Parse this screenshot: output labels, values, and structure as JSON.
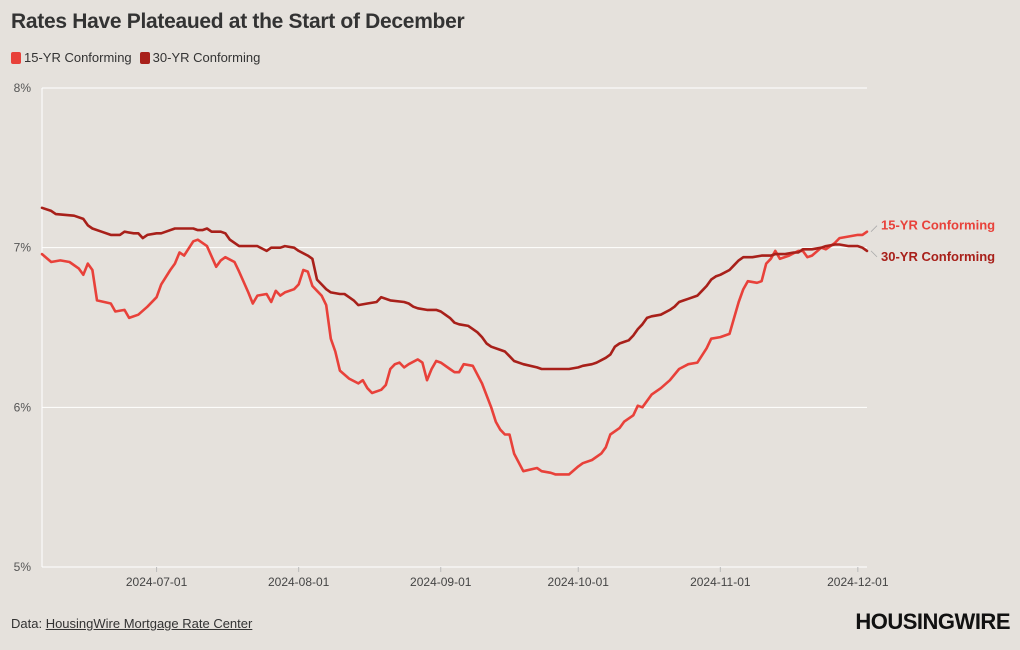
{
  "chart_data": {
    "type": "line",
    "title": "Rates Have Plateaued at the Start of December",
    "xlabel": "",
    "ylabel": "",
    "x_start": "2024-06-06",
    "x_end": "2024-12-03",
    "x_ticks": [
      "2024-07-01",
      "2024-08-01",
      "2024-09-01",
      "2024-10-01",
      "2024-11-01",
      "2024-12-01"
    ],
    "y_ticks": [
      "5%",
      "6%",
      "7%",
      "8%"
    ],
    "ylim": [
      5,
      8
    ],
    "grid": true,
    "legend_position": "top-left",
    "series": [
      {
        "name": "15-YR Conforming",
        "color": "#e8413a",
        "end_label": "15-YR Conforming",
        "points": [
          [
            "2024-06-06",
            6.96
          ],
          [
            "2024-06-08",
            6.91
          ],
          [
            "2024-06-10",
            6.92
          ],
          [
            "2024-06-12",
            6.91
          ],
          [
            "2024-06-14",
            6.87
          ],
          [
            "2024-06-15",
            6.83
          ],
          [
            "2024-06-16",
            6.9
          ],
          [
            "2024-06-17",
            6.86
          ],
          [
            "2024-06-18",
            6.67
          ],
          [
            "2024-06-21",
            6.65
          ],
          [
            "2024-06-22",
            6.6
          ],
          [
            "2024-06-24",
            6.61
          ],
          [
            "2024-06-25",
            6.56
          ],
          [
            "2024-06-27",
            6.58
          ],
          [
            "2024-06-29",
            6.63
          ],
          [
            "2024-07-01",
            6.69
          ],
          [
            "2024-07-02",
            6.77
          ],
          [
            "2024-07-04",
            6.86
          ],
          [
            "2024-07-05",
            6.9
          ],
          [
            "2024-07-06",
            6.97
          ],
          [
            "2024-07-07",
            6.95
          ],
          [
            "2024-07-09",
            7.04
          ],
          [
            "2024-07-10",
            7.05
          ],
          [
            "2024-07-12",
            7.01
          ],
          [
            "2024-07-14",
            6.88
          ],
          [
            "2024-07-15",
            6.92
          ],
          [
            "2024-07-16",
            6.94
          ],
          [
            "2024-07-18",
            6.91
          ],
          [
            "2024-07-19",
            6.85
          ],
          [
            "2024-07-21",
            6.72
          ],
          [
            "2024-07-22",
            6.65
          ],
          [
            "2024-07-23",
            6.7
          ],
          [
            "2024-07-25",
            6.71
          ],
          [
            "2024-07-26",
            6.66
          ],
          [
            "2024-07-27",
            6.73
          ],
          [
            "2024-07-28",
            6.7
          ],
          [
            "2024-07-29",
            6.72
          ],
          [
            "2024-07-31",
            6.74
          ],
          [
            "2024-08-01",
            6.77
          ],
          [
            "2024-08-02",
            6.86
          ],
          [
            "2024-08-03",
            6.85
          ],
          [
            "2024-08-04",
            6.76
          ],
          [
            "2024-08-05",
            6.73
          ],
          [
            "2024-08-06",
            6.7
          ],
          [
            "2024-08-07",
            6.64
          ],
          [
            "2024-08-08",
            6.43
          ],
          [
            "2024-08-09",
            6.35
          ],
          [
            "2024-08-10",
            6.23
          ],
          [
            "2024-08-12",
            6.18
          ],
          [
            "2024-08-14",
            6.15
          ],
          [
            "2024-08-15",
            6.17
          ],
          [
            "2024-08-16",
            6.12
          ],
          [
            "2024-08-17",
            6.09
          ],
          [
            "2024-08-19",
            6.11
          ],
          [
            "2024-08-20",
            6.14
          ],
          [
            "2024-08-21",
            6.24
          ],
          [
            "2024-08-22",
            6.27
          ],
          [
            "2024-08-23",
            6.28
          ],
          [
            "2024-08-24",
            6.25
          ],
          [
            "2024-08-25",
            6.27
          ],
          [
            "2024-08-27",
            6.3
          ],
          [
            "2024-08-28",
            6.28
          ],
          [
            "2024-08-29",
            6.17
          ],
          [
            "2024-08-30",
            6.24
          ],
          [
            "2024-08-31",
            6.29
          ],
          [
            "2024-09-01",
            6.28
          ],
          [
            "2024-09-03",
            6.24
          ],
          [
            "2024-09-04",
            6.22
          ],
          [
            "2024-09-05",
            6.22
          ],
          [
            "2024-09-06",
            6.27
          ],
          [
            "2024-09-08",
            6.26
          ],
          [
            "2024-09-10",
            6.15
          ],
          [
            "2024-09-12",
            6.0
          ],
          [
            "2024-09-13",
            5.91
          ],
          [
            "2024-09-14",
            5.86
          ],
          [
            "2024-09-15",
            5.83
          ],
          [
            "2024-09-16",
            5.83
          ],
          [
            "2024-09-17",
            5.71
          ],
          [
            "2024-09-19",
            5.6
          ],
          [
            "2024-09-22",
            5.62
          ],
          [
            "2024-09-23",
            5.6
          ],
          [
            "2024-09-25",
            5.59
          ],
          [
            "2024-09-26",
            5.58
          ],
          [
            "2024-09-29",
            5.58
          ],
          [
            "2024-10-01",
            5.63
          ],
          [
            "2024-10-02",
            5.65
          ],
          [
            "2024-10-04",
            5.67
          ],
          [
            "2024-10-06",
            5.71
          ],
          [
            "2024-10-07",
            5.75
          ],
          [
            "2024-10-08",
            5.83
          ],
          [
            "2024-10-10",
            5.87
          ],
          [
            "2024-10-11",
            5.91
          ],
          [
            "2024-10-13",
            5.95
          ],
          [
            "2024-10-14",
            6.01
          ],
          [
            "2024-10-15",
            6.0
          ],
          [
            "2024-10-17",
            6.08
          ],
          [
            "2024-10-19",
            6.12
          ],
          [
            "2024-10-21",
            6.17
          ],
          [
            "2024-10-23",
            6.24
          ],
          [
            "2024-10-25",
            6.27
          ],
          [
            "2024-10-27",
            6.28
          ],
          [
            "2024-10-29",
            6.37
          ],
          [
            "2024-10-30",
            6.43
          ],
          [
            "2024-11-01",
            6.44
          ],
          [
            "2024-11-03",
            6.46
          ],
          [
            "2024-11-04",
            6.56
          ],
          [
            "2024-11-05",
            6.66
          ],
          [
            "2024-11-06",
            6.74
          ],
          [
            "2024-11-07",
            6.79
          ],
          [
            "2024-11-09",
            6.78
          ],
          [
            "2024-11-10",
            6.79
          ],
          [
            "2024-11-11",
            6.9
          ],
          [
            "2024-11-12",
            6.93
          ],
          [
            "2024-11-13",
            6.98
          ],
          [
            "2024-11-14",
            6.93
          ],
          [
            "2024-11-16",
            6.95
          ],
          [
            "2024-11-18",
            6.98
          ],
          [
            "2024-11-19",
            6.98
          ],
          [
            "2024-11-20",
            6.94
          ],
          [
            "2024-11-21",
            6.95
          ],
          [
            "2024-11-23",
            7.0
          ],
          [
            "2024-11-24",
            6.99
          ],
          [
            "2024-11-26",
            7.03
          ],
          [
            "2024-11-27",
            7.06
          ],
          [
            "2024-11-29",
            7.07
          ],
          [
            "2024-12-01",
            7.08
          ],
          [
            "2024-12-02",
            7.08
          ],
          [
            "2024-12-03",
            7.1
          ]
        ]
      },
      {
        "name": "30-YR Conforming",
        "color": "#a8201a",
        "end_label": "30-YR Conforming",
        "points": [
          [
            "2024-06-06",
            7.25
          ],
          [
            "2024-06-08",
            7.23
          ],
          [
            "2024-06-09",
            7.21
          ],
          [
            "2024-06-13",
            7.2
          ],
          [
            "2024-06-15",
            7.18
          ],
          [
            "2024-06-16",
            7.14
          ],
          [
            "2024-06-17",
            7.12
          ],
          [
            "2024-06-19",
            7.1
          ],
          [
            "2024-06-21",
            7.08
          ],
          [
            "2024-06-23",
            7.08
          ],
          [
            "2024-06-24",
            7.1
          ],
          [
            "2024-06-26",
            7.09
          ],
          [
            "2024-06-27",
            7.09
          ],
          [
            "2024-06-28",
            7.06
          ],
          [
            "2024-06-29",
            7.08
          ],
          [
            "2024-07-01",
            7.09
          ],
          [
            "2024-07-02",
            7.09
          ],
          [
            "2024-07-03",
            7.1
          ],
          [
            "2024-07-05",
            7.12
          ],
          [
            "2024-07-07",
            7.12
          ],
          [
            "2024-07-09",
            7.12
          ],
          [
            "2024-07-10",
            7.11
          ],
          [
            "2024-07-11",
            7.11
          ],
          [
            "2024-07-12",
            7.12
          ],
          [
            "2024-07-13",
            7.1
          ],
          [
            "2024-07-15",
            7.1
          ],
          [
            "2024-07-16",
            7.09
          ],
          [
            "2024-07-17",
            7.05
          ],
          [
            "2024-07-19",
            7.01
          ],
          [
            "2024-07-21",
            7.01
          ],
          [
            "2024-07-23",
            7.01
          ],
          [
            "2024-07-25",
            6.98
          ],
          [
            "2024-07-26",
            7.0
          ],
          [
            "2024-07-28",
            7.0
          ],
          [
            "2024-07-29",
            7.01
          ],
          [
            "2024-07-31",
            7.0
          ],
          [
            "2024-08-01",
            6.98
          ],
          [
            "2024-08-03",
            6.95
          ],
          [
            "2024-08-04",
            6.93
          ],
          [
            "2024-08-05",
            6.8
          ],
          [
            "2024-08-06",
            6.77
          ],
          [
            "2024-08-07",
            6.74
          ],
          [
            "2024-08-08",
            6.72
          ],
          [
            "2024-08-10",
            6.71
          ],
          [
            "2024-08-11",
            6.71
          ],
          [
            "2024-08-12",
            6.69
          ],
          [
            "2024-08-13",
            6.67
          ],
          [
            "2024-08-14",
            6.64
          ],
          [
            "2024-08-16",
            6.65
          ],
          [
            "2024-08-18",
            6.66
          ],
          [
            "2024-08-19",
            6.69
          ],
          [
            "2024-08-21",
            6.67
          ],
          [
            "2024-08-24",
            6.66
          ],
          [
            "2024-08-25",
            6.65
          ],
          [
            "2024-08-26",
            6.63
          ],
          [
            "2024-08-27",
            6.62
          ],
          [
            "2024-08-29",
            6.61
          ],
          [
            "2024-08-31",
            6.61
          ],
          [
            "2024-09-01",
            6.6
          ],
          [
            "2024-09-02",
            6.58
          ],
          [
            "2024-09-03",
            6.56
          ],
          [
            "2024-09-04",
            6.53
          ],
          [
            "2024-09-05",
            6.52
          ],
          [
            "2024-09-07",
            6.51
          ],
          [
            "2024-09-08",
            6.49
          ],
          [
            "2024-09-09",
            6.47
          ],
          [
            "2024-09-10",
            6.44
          ],
          [
            "2024-09-11",
            6.4
          ],
          [
            "2024-09-12",
            6.38
          ],
          [
            "2024-09-14",
            6.36
          ],
          [
            "2024-09-15",
            6.35
          ],
          [
            "2024-09-16",
            6.32
          ],
          [
            "2024-09-17",
            6.29
          ],
          [
            "2024-09-19",
            6.27
          ],
          [
            "2024-09-22",
            6.25
          ],
          [
            "2024-09-23",
            6.24
          ],
          [
            "2024-09-25",
            6.24
          ],
          [
            "2024-09-29",
            6.24
          ],
          [
            "2024-10-01",
            6.25
          ],
          [
            "2024-10-02",
            6.26
          ],
          [
            "2024-10-04",
            6.27
          ],
          [
            "2024-10-05",
            6.28
          ],
          [
            "2024-10-07",
            6.31
          ],
          [
            "2024-10-08",
            6.33
          ],
          [
            "2024-10-09",
            6.38
          ],
          [
            "2024-10-10",
            6.4
          ],
          [
            "2024-10-11",
            6.41
          ],
          [
            "2024-10-12",
            6.42
          ],
          [
            "2024-10-13",
            6.45
          ],
          [
            "2024-10-14",
            6.49
          ],
          [
            "2024-10-15",
            6.52
          ],
          [
            "2024-10-16",
            6.56
          ],
          [
            "2024-10-17",
            6.57
          ],
          [
            "2024-10-19",
            6.58
          ],
          [
            "2024-10-21",
            6.61
          ],
          [
            "2024-10-22",
            6.63
          ],
          [
            "2024-10-23",
            6.66
          ],
          [
            "2024-10-24",
            6.67
          ],
          [
            "2024-10-25",
            6.68
          ],
          [
            "2024-10-27",
            6.7
          ],
          [
            "2024-10-28",
            6.73
          ],
          [
            "2024-10-29",
            6.76
          ],
          [
            "2024-10-30",
            6.8
          ],
          [
            "2024-10-31",
            6.82
          ],
          [
            "2024-11-01",
            6.83
          ],
          [
            "2024-11-03",
            6.86
          ],
          [
            "2024-11-04",
            6.89
          ],
          [
            "2024-11-05",
            6.92
          ],
          [
            "2024-11-06",
            6.94
          ],
          [
            "2024-11-08",
            6.94
          ],
          [
            "2024-11-10",
            6.95
          ],
          [
            "2024-11-12",
            6.95
          ],
          [
            "2024-11-13",
            6.96
          ],
          [
            "2024-11-15",
            6.96
          ],
          [
            "2024-11-17",
            6.97
          ],
          [
            "2024-11-18",
            6.97
          ],
          [
            "2024-11-19",
            6.99
          ],
          [
            "2024-11-21",
            6.99
          ],
          [
            "2024-11-23",
            7.0
          ],
          [
            "2024-11-24",
            7.01
          ],
          [
            "2024-11-26",
            7.02
          ],
          [
            "2024-11-27",
            7.02
          ],
          [
            "2024-11-29",
            7.01
          ],
          [
            "2024-12-01",
            7.01
          ],
          [
            "2024-12-02",
            7.0
          ],
          [
            "2024-12-03",
            6.98
          ]
        ]
      }
    ]
  },
  "footer": {
    "prefix": "Data: ",
    "source_link": "HousingWire Mortgage Rate Center"
  },
  "brand": "HOUSINGWIRE"
}
